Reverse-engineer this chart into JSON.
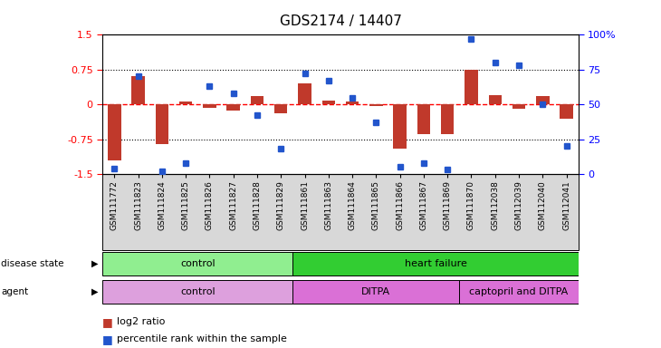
{
  "title": "GDS2174 / 14407",
  "samples": [
    "GSM111772",
    "GSM111823",
    "GSM111824",
    "GSM111825",
    "GSM111826",
    "GSM111827",
    "GSM111828",
    "GSM111829",
    "GSM111861",
    "GSM111863",
    "GSM111864",
    "GSM111865",
    "GSM111866",
    "GSM111867",
    "GSM111869",
    "GSM111870",
    "GSM112038",
    "GSM112039",
    "GSM112040",
    "GSM112041"
  ],
  "log2_ratio": [
    -1.2,
    0.6,
    -0.85,
    0.07,
    -0.07,
    -0.13,
    0.18,
    -0.2,
    0.45,
    0.08,
    0.07,
    -0.04,
    -0.95,
    -0.65,
    -0.65,
    0.75,
    0.2,
    -0.1,
    0.17,
    -0.3
  ],
  "pct_rank": [
    4,
    70,
    2,
    8,
    63,
    58,
    42,
    18,
    72,
    67,
    55,
    37,
    5,
    8,
    3,
    97,
    80,
    78,
    50,
    20
  ],
  "bar_color": "#c0392b",
  "dot_color": "#2255cc",
  "ylim_left": [
    -1.5,
    1.5
  ],
  "ylim_right": [
    0,
    100
  ],
  "yticks_left": [
    -1.5,
    -0.75,
    0,
    0.75,
    1.5
  ],
  "yticks_right": [
    0,
    25,
    50,
    75,
    100
  ],
  "hlines_dotted": [
    -0.75,
    0.75
  ],
  "hline_dashed": 0,
  "disease_state_groups": [
    {
      "label": "control",
      "start": 0,
      "end": 7,
      "color": "#90EE90"
    },
    {
      "label": "heart failure",
      "start": 8,
      "end": 19,
      "color": "#32CD32"
    }
  ],
  "agent_groups": [
    {
      "label": "control",
      "start": 0,
      "end": 7,
      "color": "#DDA0DD"
    },
    {
      "label": "DITPA",
      "start": 8,
      "end": 14,
      "color": "#DA70D6"
    },
    {
      "label": "captopril and DITPA",
      "start": 15,
      "end": 19,
      "color": "#DA70D6"
    }
  ],
  "legend_bar_label": "log2 ratio",
  "legend_dot_label": "percentile rank within the sample",
  "bar_width": 0.55
}
